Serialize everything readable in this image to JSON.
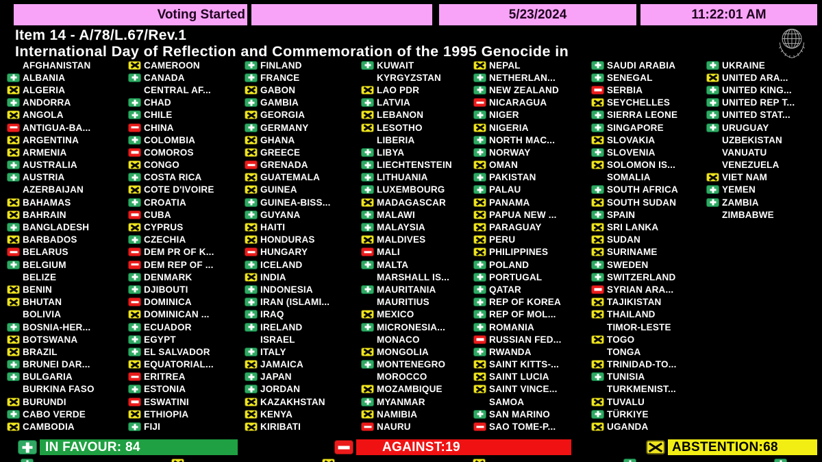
{
  "header": {
    "status": "Voting Started",
    "date": "5/23/2024",
    "time": "11:22:01 AM"
  },
  "title": {
    "line1": "Item 14 - A/78/L.67/Rev.1",
    "line2": "International Day of Reflection and Commemoration of the 1995 Genocide in"
  },
  "icons": {
    "favour": "plus-icon",
    "against": "minus-icon",
    "abstain": "x-icon",
    "emblem": "un-emblem-icon"
  },
  "colors": {
    "favour_green": "#2fa963",
    "against_red": "#ec1b1b",
    "abstain_yellow": "#efe51c",
    "bar_pink": "#f8a3f8",
    "summary_green": "#1fa042",
    "summary_red": "#f01212",
    "summary_yellow": "#f2ee14"
  },
  "summary": {
    "favour_label": "IN FAVOUR: 84",
    "against_label": "AGAINST:19",
    "abstention_label": "ABSTENTION:68",
    "favour_count": 84,
    "against_count": 19,
    "abstention_count": 68
  },
  "columns": [
    [
      {
        "name": "AFGHANISTAN",
        "vote": ""
      },
      {
        "name": "ALBANIA",
        "vote": "Y"
      },
      {
        "name": "ALGERIA",
        "vote": "A"
      },
      {
        "name": "ANDORRA",
        "vote": "Y"
      },
      {
        "name": "ANGOLA",
        "vote": "A"
      },
      {
        "name": "ANTIGUA-BA...",
        "vote": "N"
      },
      {
        "name": "ARGENTINA",
        "vote": "A"
      },
      {
        "name": "ARMENIA",
        "vote": "A"
      },
      {
        "name": "AUSTRALIA",
        "vote": "Y"
      },
      {
        "name": "AUSTRIA",
        "vote": "Y"
      },
      {
        "name": "AZERBAIJAN",
        "vote": ""
      },
      {
        "name": "BAHAMAS",
        "vote": "A"
      },
      {
        "name": "BAHRAIN",
        "vote": "A"
      },
      {
        "name": "BANGLADESH",
        "vote": "Y"
      },
      {
        "name": "BARBADOS",
        "vote": "A"
      },
      {
        "name": "BELARUS",
        "vote": "N"
      },
      {
        "name": "BELGIUM",
        "vote": "Y"
      },
      {
        "name": "BELIZE",
        "vote": ""
      },
      {
        "name": "BENIN",
        "vote": "A"
      },
      {
        "name": "BHUTAN",
        "vote": "A"
      },
      {
        "name": "BOLIVIA",
        "vote": ""
      },
      {
        "name": "BOSNIA-HER...",
        "vote": "Y"
      },
      {
        "name": "BOTSWANA",
        "vote": "A"
      },
      {
        "name": "BRAZIL",
        "vote": "A"
      },
      {
        "name": "BRUNEI DAR...",
        "vote": "Y"
      },
      {
        "name": "BULGARIA",
        "vote": "Y"
      },
      {
        "name": "BURKINA FASO",
        "vote": ""
      },
      {
        "name": "BURUNDI",
        "vote": "A"
      },
      {
        "name": "CABO VERDE",
        "vote": "Y"
      },
      {
        "name": "CAMBODIA",
        "vote": "A"
      }
    ],
    [
      {
        "name": "CAMEROON",
        "vote": "A"
      },
      {
        "name": "CANADA",
        "vote": "Y"
      },
      {
        "name": "CENTRAL AF...",
        "vote": ""
      },
      {
        "name": "CHAD",
        "vote": "Y"
      },
      {
        "name": "CHILE",
        "vote": "Y"
      },
      {
        "name": "CHINA",
        "vote": "N"
      },
      {
        "name": "COLOMBIA",
        "vote": "Y"
      },
      {
        "name": "COMOROS",
        "vote": "N"
      },
      {
        "name": "CONGO",
        "vote": "A"
      },
      {
        "name": "COSTA RICA",
        "vote": "Y"
      },
      {
        "name": "COTE D'IVOIRE",
        "vote": "A"
      },
      {
        "name": "CROATIA",
        "vote": "Y"
      },
      {
        "name": "CUBA",
        "vote": "N"
      },
      {
        "name": "CYPRUS",
        "vote": "A"
      },
      {
        "name": "CZECHIA",
        "vote": "Y"
      },
      {
        "name": "DEM PR OF K...",
        "vote": "N"
      },
      {
        "name": "DEM REP OF ...",
        "vote": "N"
      },
      {
        "name": "DENMARK",
        "vote": "Y"
      },
      {
        "name": "DJIBOUTI",
        "vote": "Y"
      },
      {
        "name": "DOMINICA",
        "vote": "N"
      },
      {
        "name": "DOMINICAN ...",
        "vote": "A"
      },
      {
        "name": "ECUADOR",
        "vote": "Y"
      },
      {
        "name": "EGYPT",
        "vote": "Y"
      },
      {
        "name": "EL SALVADOR",
        "vote": "Y"
      },
      {
        "name": "EQUATORIAL...",
        "vote": "A"
      },
      {
        "name": "ERITREA",
        "vote": "N"
      },
      {
        "name": "ESTONIA",
        "vote": "Y"
      },
      {
        "name": "ESWATINI",
        "vote": "N"
      },
      {
        "name": "ETHIOPIA",
        "vote": "A"
      },
      {
        "name": "FIJI",
        "vote": "Y"
      }
    ],
    [
      {
        "name": "FINLAND",
        "vote": "Y"
      },
      {
        "name": "FRANCE",
        "vote": "Y"
      },
      {
        "name": "GABON",
        "vote": "A"
      },
      {
        "name": "GAMBIA",
        "vote": "Y"
      },
      {
        "name": "GEORGIA",
        "vote": "A"
      },
      {
        "name": "GERMANY",
        "vote": "Y"
      },
      {
        "name": "GHANA",
        "vote": "A"
      },
      {
        "name": "GREECE",
        "vote": "A"
      },
      {
        "name": "GRENADA",
        "vote": "N"
      },
      {
        "name": "GUATEMALA",
        "vote": "A"
      },
      {
        "name": "GUINEA",
        "vote": "A"
      },
      {
        "name": "GUINEA-BISS...",
        "vote": "Y"
      },
      {
        "name": "GUYANA",
        "vote": "Y"
      },
      {
        "name": "HAITI",
        "vote": "A"
      },
      {
        "name": "HONDURAS",
        "vote": "A"
      },
      {
        "name": "HUNGARY",
        "vote": "N"
      },
      {
        "name": "ICELAND",
        "vote": "Y"
      },
      {
        "name": "INDIA",
        "vote": "A"
      },
      {
        "name": "INDONESIA",
        "vote": "Y"
      },
      {
        "name": "IRAN (ISLAMI...",
        "vote": "Y"
      },
      {
        "name": "IRAQ",
        "vote": "Y"
      },
      {
        "name": "IRELAND",
        "vote": "Y"
      },
      {
        "name": "ISRAEL",
        "vote": ""
      },
      {
        "name": "ITALY",
        "vote": "Y"
      },
      {
        "name": "JAMAICA",
        "vote": "A"
      },
      {
        "name": "JAPAN",
        "vote": "Y"
      },
      {
        "name": "JORDAN",
        "vote": "Y"
      },
      {
        "name": "KAZAKHSTAN",
        "vote": "A"
      },
      {
        "name": "KENYA",
        "vote": "A"
      },
      {
        "name": "KIRIBATI",
        "vote": "A"
      }
    ],
    [
      {
        "name": "KUWAIT",
        "vote": "Y"
      },
      {
        "name": "KYRGYZSTAN",
        "vote": ""
      },
      {
        "name": "LAO PDR",
        "vote": "A"
      },
      {
        "name": "LATVIA",
        "vote": "Y"
      },
      {
        "name": "LEBANON",
        "vote": "A"
      },
      {
        "name": "LESOTHO",
        "vote": "A"
      },
      {
        "name": "LIBERIA",
        "vote": ""
      },
      {
        "name": "LIBYA",
        "vote": "Y"
      },
      {
        "name": "LIECHTENSTEIN",
        "vote": "Y"
      },
      {
        "name": "LITHUANIA",
        "vote": "Y"
      },
      {
        "name": "LUXEMBOURG",
        "vote": "Y"
      },
      {
        "name": "MADAGASCAR",
        "vote": "A"
      },
      {
        "name": "MALAWI",
        "vote": "Y"
      },
      {
        "name": "MALAYSIA",
        "vote": "Y"
      },
      {
        "name": "MALDIVES",
        "vote": "A"
      },
      {
        "name": "MALI",
        "vote": "N"
      },
      {
        "name": "MALTA",
        "vote": "Y"
      },
      {
        "name": "MARSHALL IS...",
        "vote": ""
      },
      {
        "name": "MAURITANIA",
        "vote": "Y"
      },
      {
        "name": "MAURITIUS",
        "vote": ""
      },
      {
        "name": "MEXICO",
        "vote": "A"
      },
      {
        "name": "MICRONESIA...",
        "vote": "Y"
      },
      {
        "name": "MONACO",
        "vote": ""
      },
      {
        "name": "MONGOLIA",
        "vote": "A"
      },
      {
        "name": "MONTENEGRO",
        "vote": "Y"
      },
      {
        "name": "MOROCCO",
        "vote": ""
      },
      {
        "name": "MOZAMBIQUE",
        "vote": "A"
      },
      {
        "name": "MYANMAR",
        "vote": "Y"
      },
      {
        "name": "NAMIBIA",
        "vote": "A"
      },
      {
        "name": "NAURU",
        "vote": "N"
      }
    ],
    [
      {
        "name": "NEPAL",
        "vote": "A"
      },
      {
        "name": "NETHERLAN...",
        "vote": "Y"
      },
      {
        "name": "NEW ZEALAND",
        "vote": "Y"
      },
      {
        "name": "NICARAGUA",
        "vote": "N"
      },
      {
        "name": "NIGER",
        "vote": "Y"
      },
      {
        "name": "NIGERIA",
        "vote": "A"
      },
      {
        "name": "NORTH MAC...",
        "vote": "Y"
      },
      {
        "name": "NORWAY",
        "vote": "Y"
      },
      {
        "name": "OMAN",
        "vote": "A"
      },
      {
        "name": "PAKISTAN",
        "vote": "Y"
      },
      {
        "name": "PALAU",
        "vote": "Y"
      },
      {
        "name": "PANAMA",
        "vote": "A"
      },
      {
        "name": "PAPUA NEW ...",
        "vote": "A"
      },
      {
        "name": "PARAGUAY",
        "vote": "A"
      },
      {
        "name": "PERU",
        "vote": "A"
      },
      {
        "name": "PHILIPPINES",
        "vote": "A"
      },
      {
        "name": "POLAND",
        "vote": "Y"
      },
      {
        "name": "PORTUGAL",
        "vote": "Y"
      },
      {
        "name": "QATAR",
        "vote": "Y"
      },
      {
        "name": "REP OF KOREA",
        "vote": "Y"
      },
      {
        "name": "REP OF MOL...",
        "vote": "Y"
      },
      {
        "name": "ROMANIA",
        "vote": "Y"
      },
      {
        "name": "RUSSIAN FED...",
        "vote": "N"
      },
      {
        "name": "RWANDA",
        "vote": "Y"
      },
      {
        "name": "SAINT KITTS-...",
        "vote": "A"
      },
      {
        "name": "SAINT LUCIA",
        "vote": "A"
      },
      {
        "name": "SAINT VINCE...",
        "vote": "A"
      },
      {
        "name": "SAMOA",
        "vote": ""
      },
      {
        "name": "SAN MARINO",
        "vote": "Y"
      },
      {
        "name": "SAO TOME-P...",
        "vote": "N"
      }
    ],
    [
      {
        "name": "SAUDI ARABIA",
        "vote": "Y"
      },
      {
        "name": "SENEGAL",
        "vote": "Y"
      },
      {
        "name": "SERBIA",
        "vote": "N"
      },
      {
        "name": "SEYCHELLES",
        "vote": "A"
      },
      {
        "name": "SIERRA LEONE",
        "vote": "Y"
      },
      {
        "name": "SINGAPORE",
        "vote": "Y"
      },
      {
        "name": "SLOVAKIA",
        "vote": "A"
      },
      {
        "name": "SLOVENIA",
        "vote": "Y"
      },
      {
        "name": "SOLOMON IS...",
        "vote": "A"
      },
      {
        "name": "SOMALIA",
        "vote": ""
      },
      {
        "name": "SOUTH AFRICA",
        "vote": "Y"
      },
      {
        "name": "SOUTH SUDAN",
        "vote": "A"
      },
      {
        "name": "SPAIN",
        "vote": "Y"
      },
      {
        "name": "SRI LANKA",
        "vote": "A"
      },
      {
        "name": "SUDAN",
        "vote": "A"
      },
      {
        "name": "SURINAME",
        "vote": "A"
      },
      {
        "name": "SWEDEN",
        "vote": "Y"
      },
      {
        "name": "SWITZERLAND",
        "vote": "Y"
      },
      {
        "name": "SYRIAN ARA...",
        "vote": "N"
      },
      {
        "name": "TAJIKISTAN",
        "vote": "A"
      },
      {
        "name": "THAILAND",
        "vote": "A"
      },
      {
        "name": "TIMOR-LESTE",
        "vote": ""
      },
      {
        "name": "TOGO",
        "vote": "A"
      },
      {
        "name": "TONGA",
        "vote": ""
      },
      {
        "name": "TRINIDAD-TO...",
        "vote": "A"
      },
      {
        "name": "TUNISIA",
        "vote": "Y"
      },
      {
        "name": "TURKMENIST...",
        "vote": ""
      },
      {
        "name": "TUVALU",
        "vote": "A"
      },
      {
        "name": "TÜRKIYE",
        "vote": "Y"
      },
      {
        "name": "UGANDA",
        "vote": "A"
      }
    ],
    [
      {
        "name": "UKRAINE",
        "vote": "Y"
      },
      {
        "name": "UNITED ARA...",
        "vote": "A"
      },
      {
        "name": "UNITED KING...",
        "vote": "Y"
      },
      {
        "name": "UNITED REP T...",
        "vote": "Y"
      },
      {
        "name": "UNITED STAT...",
        "vote": "Y"
      },
      {
        "name": "URUGUAY",
        "vote": "Y"
      },
      {
        "name": "UZBEKISTAN",
        "vote": ""
      },
      {
        "name": "VANUATU",
        "vote": ""
      },
      {
        "name": "VENEZUELA",
        "vote": ""
      },
      {
        "name": "VIET NAM",
        "vote": "A"
      },
      {
        "name": "YEMEN",
        "vote": "Y"
      },
      {
        "name": "ZAMBIA",
        "vote": "Y"
      },
      {
        "name": "ZIMBABWE",
        "vote": ""
      }
    ]
  ],
  "partial_row_icons": [
    "Y",
    "A",
    "A",
    "A",
    "Y",
    "Y"
  ]
}
